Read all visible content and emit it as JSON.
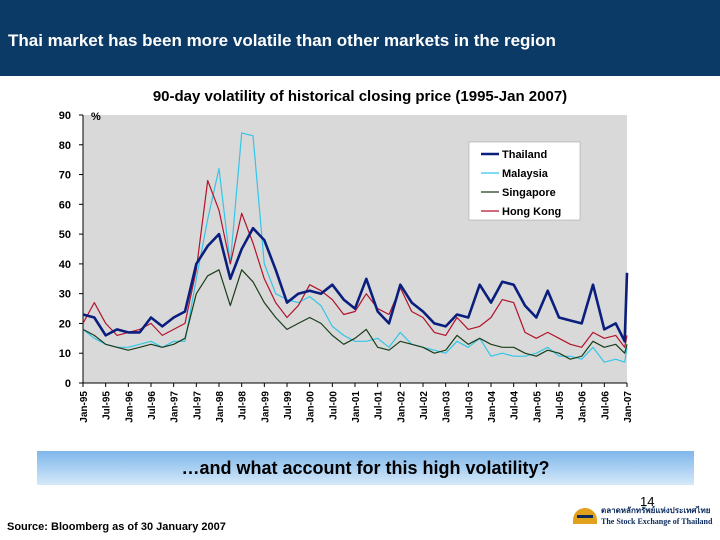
{
  "slide": {
    "title": "Thai market has been more volatile than other markets in the region",
    "banner_text": "…and what account for this high volatility?",
    "page_number": "14",
    "source": "Source: Bloomberg as of 30 January 2007",
    "logo_thai_text": "ตลาดหลักทรัพย์แห่งประเทศไทย",
    "logo_english_text": "The Stock Exchange of Thailand"
  },
  "colors": {
    "header_bg": "#0b3a66",
    "plot_bg": "#d9d9d9",
    "thailand": "#0a1f7d",
    "malaysia": "#33c6e8",
    "singapore": "#1a3d1a",
    "hong_kong": "#b2132b"
  },
  "chart_data": {
    "type": "line",
    "title": "90-day volatility of historical closing price (1995-Jan 2007)",
    "ylabel": "%",
    "ylim": [
      0,
      90
    ],
    "yticks": [
      0,
      10,
      20,
      30,
      40,
      50,
      60,
      70,
      80,
      90
    ],
    "xlim": [
      1995.0,
      2007.0
    ],
    "xtick_labels": [
      "Jan-95",
      "Jul-95",
      "Jan-96",
      "Jul-96",
      "Jan-97",
      "Jul-97",
      "Jan-98",
      "Jul-98",
      "Jan-99",
      "Jul-99",
      "Jan-00",
      "Jul-00",
      "Jan-01",
      "Jul-01",
      "Jan-02",
      "Jul-02",
      "Jan-03",
      "Jul-03",
      "Jan-04",
      "Jul-04",
      "Jan-05",
      "Jul-05",
      "Jan-06",
      "Jul-06",
      "Jan-07"
    ],
    "legend_position": "top-right",
    "grid": false,
    "x": [
      1995.0,
      1995.25,
      1995.5,
      1995.75,
      1996.0,
      1996.25,
      1996.5,
      1996.75,
      1997.0,
      1997.25,
      1997.5,
      1997.75,
      1998.0,
      1998.25,
      1998.5,
      1998.75,
      1999.0,
      1999.25,
      1999.5,
      1999.75,
      2000.0,
      2000.25,
      2000.5,
      2000.75,
      2001.0,
      2001.25,
      2001.5,
      2001.75,
      2002.0,
      2002.25,
      2002.5,
      2002.75,
      2003.0,
      2003.25,
      2003.5,
      2003.75,
      2004.0,
      2004.25,
      2004.5,
      2004.75,
      2005.0,
      2005.25,
      2005.5,
      2005.75,
      2006.0,
      2006.25,
      2006.5,
      2006.75,
      2006.95,
      2007.0
    ],
    "series": [
      {
        "name": "Thailand",
        "values": [
          23,
          22,
          16,
          18,
          17,
          17,
          22,
          19,
          22,
          24,
          40,
          46,
          50,
          35,
          45,
          52,
          48,
          38,
          27,
          30,
          31,
          30,
          33,
          28,
          25,
          35,
          24,
          20,
          33,
          27,
          24,
          20,
          19,
          23,
          22,
          33,
          27,
          34,
          33,
          26,
          22,
          31,
          22,
          21,
          20,
          33,
          18,
          20,
          14,
          37
        ]
      },
      {
        "name": "Malaysia",
        "values": [
          18,
          15,
          13,
          12,
          12,
          13,
          14,
          12,
          14,
          14,
          35,
          55,
          72,
          40,
          84,
          83,
          40,
          30,
          28,
          27,
          29,
          26,
          19,
          16,
          14,
          14,
          15,
          12,
          17,
          13,
          12,
          11,
          10,
          14,
          12,
          15,
          9,
          10,
          9,
          9,
          10,
          12,
          9,
          9,
          8,
          12,
          7,
          8,
          7,
          12
        ]
      },
      {
        "name": "Singapore",
        "values": [
          18,
          16,
          13,
          12,
          11,
          12,
          13,
          12,
          13,
          15,
          30,
          36,
          38,
          26,
          38,
          34,
          27,
          22,
          18,
          20,
          22,
          20,
          16,
          13,
          15,
          18,
          12,
          11,
          14,
          13,
          12,
          10,
          11,
          16,
          13,
          15,
          13,
          12,
          12,
          10,
          9,
          11,
          10,
          8,
          9,
          14,
          12,
          13,
          10,
          13
        ]
      },
      {
        "name": "Hong Kong",
        "values": [
          20,
          27,
          20,
          16,
          17,
          18,
          20,
          16,
          18,
          20,
          38,
          68,
          58,
          40,
          57,
          47,
          35,
          27,
          22,
          26,
          33,
          31,
          28,
          23,
          24,
          30,
          25,
          23,
          32,
          24,
          22,
          17,
          16,
          22,
          18,
          19,
          22,
          28,
          27,
          17,
          15,
          17,
          15,
          13,
          12,
          17,
          15,
          16,
          12,
          16
        ]
      }
    ]
  }
}
